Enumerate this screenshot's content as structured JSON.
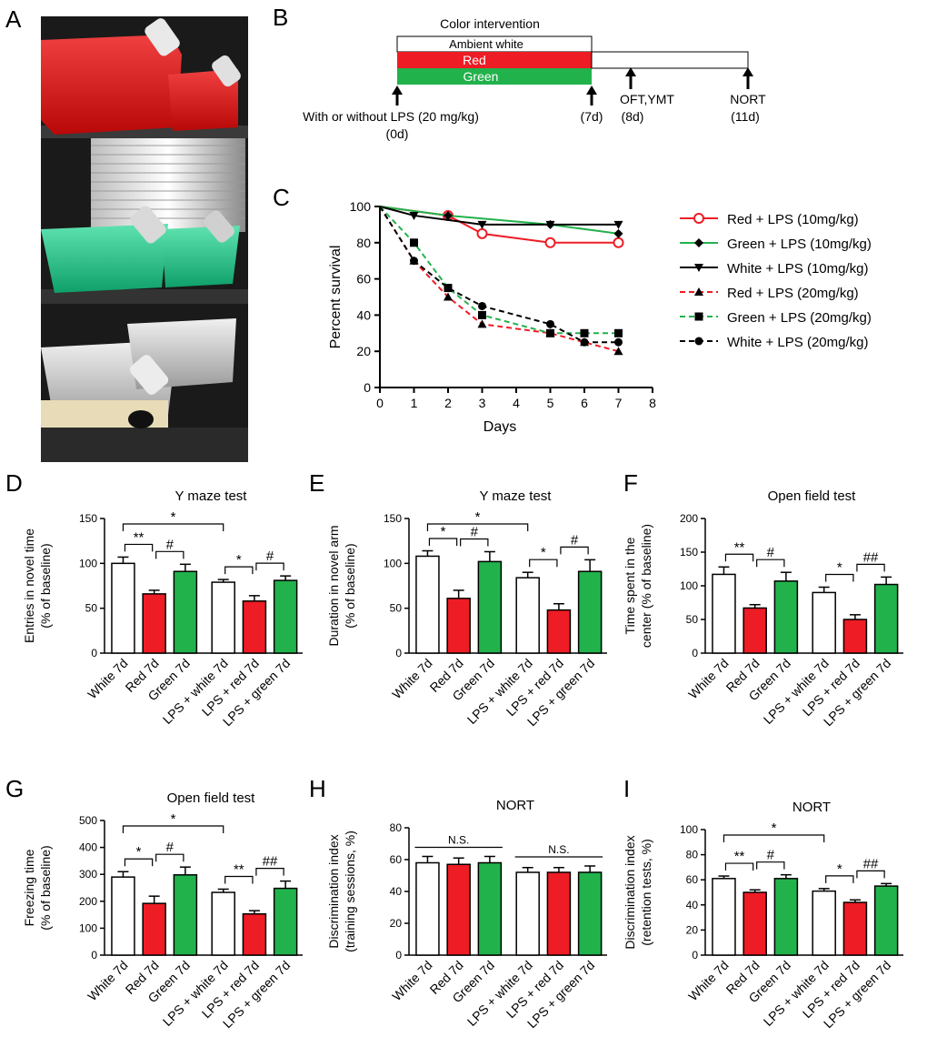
{
  "panel_letters": [
    "A",
    "B",
    "C",
    "D",
    "E",
    "F",
    "G",
    "H",
    "I"
  ],
  "photo": {
    "shelves": [
      {
        "color_name": "red",
        "color": "#d81818"
      },
      {
        "color_name": "green",
        "color": "#18c38a"
      },
      {
        "color_name": "white",
        "color": "#d8d8d8"
      }
    ]
  },
  "timeline": {
    "header": "Color intervention",
    "bars": [
      {
        "label": "Ambient white",
        "color": "#ffffff"
      },
      {
        "label": "Red",
        "color": "#ee1c25"
      },
      {
        "label": "Green",
        "color": "#22b24c"
      }
    ],
    "events": [
      {
        "line1": "With or without LPS (20 mg/kg)",
        "line2": "(0d)"
      },
      {
        "line1": "(7d)",
        "line2": ""
      },
      {
        "line1": "OFT,YMT",
        "line2": "(8d)"
      },
      {
        "line1": "NORT",
        "line2": "(11d)"
      }
    ],
    "axis_days": [
      0,
      7,
      8,
      11
    ]
  },
  "colors": {
    "white": "#ffffff",
    "red": "#ee1c25",
    "green": "#22b24c",
    "black": "#000000"
  },
  "chart_data": [
    {
      "panel": "C",
      "type": "line",
      "title": "",
      "xlabel": "Days",
      "ylabel": "Percent survival",
      "xlim": [
        0,
        8
      ],
      "ylim": [
        0,
        100
      ],
      "xticks": [
        0,
        1,
        2,
        3,
        4,
        5,
        6,
        7,
        8
      ],
      "yticks": [
        0,
        20,
        40,
        60,
        80,
        100
      ],
      "legend_position": "right",
      "series": [
        {
          "name": "Red + LPS (10mg/kg)",
          "color": "#ee1c25",
          "dashed": false,
          "marker": "circle-open",
          "x": [
            0,
            2,
            3,
            5,
            7
          ],
          "y": [
            100,
            95,
            85,
            80,
            80
          ]
        },
        {
          "name": "Green + LPS (10mg/kg)",
          "color": "#22b24c",
          "dashed": false,
          "marker": "diamond",
          "x": [
            0,
            2,
            5,
            7
          ],
          "y": [
            100,
            95,
            90,
            85
          ]
        },
        {
          "name": "White + LPS (10mg/kg)",
          "color": "#000000",
          "dashed": false,
          "marker": "triangle-down",
          "x": [
            0,
            1,
            3,
            5,
            7
          ],
          "y": [
            100,
            95,
            90,
            90,
            90
          ]
        },
        {
          "name": "Red + LPS (20mg/kg)",
          "color": "#ee1c25",
          "dashed": true,
          "marker": "triangle-up",
          "x": [
            0,
            1,
            2,
            3,
            5,
            6,
            7
          ],
          "y": [
            100,
            70,
            50,
            35,
            30,
            25,
            20
          ]
        },
        {
          "name": "Green + LPS (20mg/kg)",
          "color": "#22b24c",
          "dashed": true,
          "marker": "square",
          "x": [
            0,
            1,
            2,
            3,
            5,
            6,
            7
          ],
          "y": [
            100,
            80,
            55,
            40,
            30,
            30,
            30
          ]
        },
        {
          "name": "White + LPS (20mg/kg)",
          "color": "#000000",
          "dashed": true,
          "marker": "circle",
          "x": [
            0,
            1,
            2,
            3,
            5,
            6,
            7
          ],
          "y": [
            100,
            70,
            55,
            45,
            35,
            25,
            25
          ]
        }
      ]
    },
    {
      "panel": "D",
      "type": "bar",
      "title": "Y maze test",
      "ylabel_lines": [
        "Entries in novel time",
        "(% of baseline)"
      ],
      "ylim": [
        0,
        150
      ],
      "yticks": [
        0,
        50,
        100,
        150
      ],
      "categories": [
        "White 7d",
        "Red 7d",
        "Green 7d",
        "LPS + white 7d",
        "LPS + red 7d",
        "LPS + green 7d"
      ],
      "values": [
        100,
        66,
        91,
        79,
        58,
        81
      ],
      "errors": [
        7,
        4,
        8,
        3,
        6,
        5
      ],
      "bar_colors": [
        "white",
        "red",
        "green",
        "white",
        "red",
        "green"
      ],
      "annotations": [
        {
          "from": 0,
          "to": 1,
          "label": "**",
          "level": 0
        },
        {
          "from": 1,
          "to": 2,
          "label": "#",
          "level": 0
        },
        {
          "from": 3,
          "to": 4,
          "label": "*",
          "level": 0
        },
        {
          "from": 4,
          "to": 5,
          "label": "#",
          "level": 0
        },
        {
          "from": 0,
          "to": 3,
          "label": "*",
          "level": 1
        }
      ]
    },
    {
      "panel": "E",
      "type": "bar",
      "title": "Y maze test",
      "ylabel_lines": [
        "Duration in novel arm",
        "(% of baseline)"
      ],
      "ylim": [
        0,
        150
      ],
      "yticks": [
        0,
        50,
        100,
        150
      ],
      "categories": [
        "White 7d",
        "Red 7d",
        "Green 7d",
        "LPS + white 7d",
        "LPS + red 7d",
        "LPS + green 7d"
      ],
      "values": [
        108,
        61,
        102,
        84,
        48,
        91
      ],
      "errors": [
        6,
        9,
        11,
        6,
        7,
        13
      ],
      "bar_colors": [
        "white",
        "red",
        "green",
        "white",
        "red",
        "green"
      ],
      "annotations": [
        {
          "from": 0,
          "to": 1,
          "label": "*",
          "level": 0
        },
        {
          "from": 1,
          "to": 2,
          "label": "#",
          "level": 0
        },
        {
          "from": 3,
          "to": 4,
          "label": "*",
          "level": 0
        },
        {
          "from": 4,
          "to": 5,
          "label": "#",
          "level": 0
        },
        {
          "from": 0,
          "to": 3,
          "label": "*",
          "level": 1
        }
      ]
    },
    {
      "panel": "F",
      "type": "bar",
      "title": "Open field test",
      "ylabel_lines": [
        "Time spent in the",
        "center (% of baseline)"
      ],
      "ylim": [
        0,
        200
      ],
      "yticks": [
        0,
        50,
        100,
        150,
        200
      ],
      "categories": [
        "White 7d",
        "Red 7d",
        "Green 7d",
        "LPS + white 7d",
        "LPS + red 7d",
        "LPS + green 7d"
      ],
      "values": [
        117,
        67,
        107,
        90,
        50,
        102
      ],
      "errors": [
        11,
        5,
        13,
        8,
        7,
        11
      ],
      "bar_colors": [
        "white",
        "red",
        "green",
        "white",
        "red",
        "green"
      ],
      "annotations": [
        {
          "from": 0,
          "to": 1,
          "label": "**",
          "level": 0
        },
        {
          "from": 1,
          "to": 2,
          "label": "#",
          "level": 0
        },
        {
          "from": 3,
          "to": 4,
          "label": "*",
          "level": 0
        },
        {
          "from": 4,
          "to": 5,
          "label": "##",
          "level": 0
        }
      ]
    },
    {
      "panel": "G",
      "type": "bar",
      "title": "Open field test",
      "ylabel_lines": [
        "Freezing time",
        "(% of baseline)"
      ],
      "ylim": [
        0,
        500
      ],
      "yticks": [
        0,
        100,
        200,
        300,
        400,
        500
      ],
      "categories": [
        "White 7d",
        "Red 7d",
        "Green 7d",
        "LPS + white 7d",
        "LPS + red 7d",
        "LPS + green 7d"
      ],
      "values": [
        290,
        192,
        298,
        233,
        153,
        248
      ],
      "errors": [
        20,
        27,
        29,
        12,
        12,
        27
      ],
      "bar_colors": [
        "white",
        "red",
        "green",
        "white",
        "red",
        "green"
      ],
      "annotations": [
        {
          "from": 0,
          "to": 1,
          "label": "*",
          "level": 0
        },
        {
          "from": 1,
          "to": 2,
          "label": "#",
          "level": 0
        },
        {
          "from": 3,
          "to": 4,
          "label": "**",
          "level": 0
        },
        {
          "from": 4,
          "to": 5,
          "label": "##",
          "level": 0
        },
        {
          "from": 0,
          "to": 3,
          "label": "*",
          "level": 1
        }
      ]
    },
    {
      "panel": "H",
      "type": "bar",
      "title": "NORT",
      "ylabel_lines": [
        "Discrimination index",
        "(training sessions, %)"
      ],
      "ylim": [
        0,
        80
      ],
      "yticks": [
        0,
        20,
        40,
        60,
        80
      ],
      "categories": [
        "White 7d",
        "Red 7d",
        "Green 7d",
        "LPS + white 7d",
        "LPS + red 7d",
        "LPS + green 7d"
      ],
      "values": [
        58,
        57,
        58,
        52,
        52,
        52
      ],
      "errors": [
        4,
        4,
        4,
        3,
        3,
        4
      ],
      "bar_colors": [
        "white",
        "red",
        "green",
        "white",
        "red",
        "green"
      ],
      "annotations": [
        {
          "from": 0,
          "to": 2,
          "label": "N.S.",
          "level": 0,
          "style": "line"
        },
        {
          "from": 3,
          "to": 5,
          "label": "N.S.",
          "level": 0,
          "style": "line"
        }
      ]
    },
    {
      "panel": "I",
      "type": "bar",
      "title": "NORT",
      "ylabel_lines": [
        "Discrimination index",
        "(retention tests, %)"
      ],
      "ylim": [
        0,
        100
      ],
      "yticks": [
        0,
        20,
        40,
        60,
        80,
        100
      ],
      "categories": [
        "White 7d",
        "Red 7d",
        "Green 7d",
        "LPS + white 7d",
        "LPS + red 7d",
        "LPS + green 7d"
      ],
      "values": [
        61,
        50,
        61,
        51,
        42,
        55
      ],
      "errors": [
        2,
        2,
        3,
        2,
        2,
        2
      ],
      "bar_colors": [
        "white",
        "red",
        "green",
        "white",
        "red",
        "green"
      ],
      "annotations": [
        {
          "from": 0,
          "to": 1,
          "label": "**",
          "level": 0
        },
        {
          "from": 1,
          "to": 2,
          "label": "#",
          "level": 0
        },
        {
          "from": 3,
          "to": 4,
          "label": "*",
          "level": 0
        },
        {
          "from": 4,
          "to": 5,
          "label": "##",
          "level": 0
        },
        {
          "from": 0,
          "to": 3,
          "label": "*",
          "level": 1
        }
      ]
    }
  ]
}
